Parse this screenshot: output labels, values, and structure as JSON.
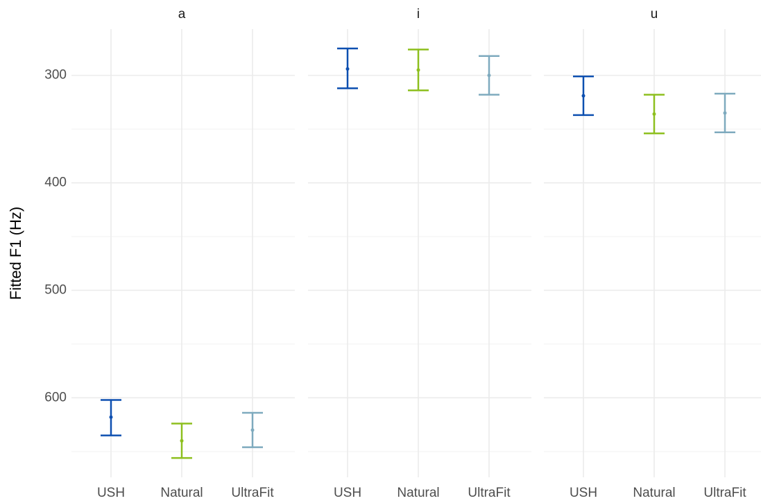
{
  "chart_data": {
    "type": "errorbar",
    "y_label": "Fitted F1 (Hz)",
    "categories": [
      "USH",
      "Natural",
      "UltraFit"
    ],
    "colors": [
      "#0d4fb0",
      "#8dbf1e",
      "#7eaabe"
    ],
    "ylim": [
      257,
      674
    ],
    "y_reversed": true,
    "yticks": [
      300,
      400,
      500,
      600
    ],
    "y_minor_ticks": [
      350,
      450,
      550,
      650
    ],
    "grid": true,
    "series": [
      {
        "name": "a",
        "values": [
          618,
          640,
          630
        ],
        "lower": [
          602,
          624,
          614
        ],
        "upper": [
          635,
          656,
          646
        ]
      },
      {
        "name": "i",
        "values": [
          294,
          295,
          300
        ],
        "lower": [
          275,
          276,
          282
        ],
        "upper": [
          312,
          314,
          318
        ]
      },
      {
        "name": "u",
        "values": [
          319,
          336,
          335
        ],
        "lower": [
          301,
          318,
          317
        ],
        "upper": [
          337,
          354,
          353
        ]
      }
    ]
  }
}
